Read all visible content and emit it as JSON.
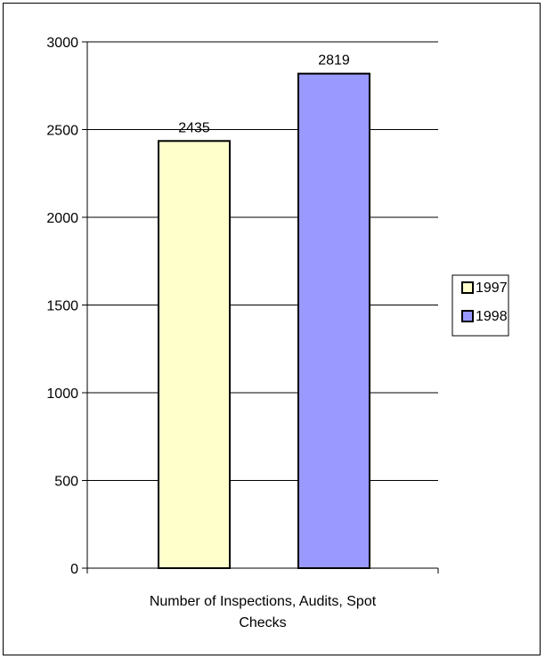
{
  "chart_data": {
    "type": "bar",
    "title": "",
    "xlabel": "",
    "ylabel": "",
    "categories": [
      "Number of Inspections, Audits, Spot Checks"
    ],
    "category_lines": [
      "Number of Inspections, Audits, Spot",
      "Checks"
    ],
    "series": [
      {
        "name": "1997",
        "values": [
          2435
        ],
        "color": "#ffffcc"
      },
      {
        "name": "1998",
        "values": [
          2819
        ],
        "color": "#9999ff"
      }
    ],
    "ylim": [
      0,
      3000
    ],
    "yticks": [
      0,
      500,
      1000,
      1500,
      2000,
      2500,
      3000
    ],
    "grid": true,
    "legend_position": "right",
    "data_labels": true
  }
}
